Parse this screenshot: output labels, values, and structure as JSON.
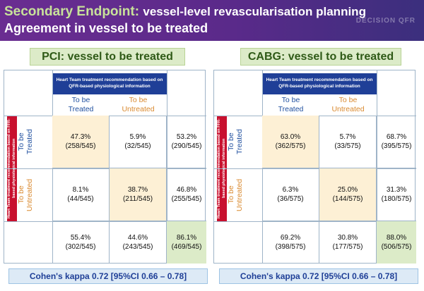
{
  "header": {
    "title_lead": "Secondary Endpoint:",
    "title_rest": "vessel-level revascularisation planning",
    "subtitle": "Agreement in vessel to be treated",
    "watermark": "DECISION QFR"
  },
  "colors": {
    "header_purple": "#5a2a8a",
    "title_green": "#c8e29a",
    "navy": "#1f3f97",
    "treated_blue": "#1f4f9f",
    "untreated_orange": "#d9892f",
    "row_red": "#c8102e",
    "highlight": "#fdf0d5",
    "total_green": "#dcebc8",
    "kappa_blue": "#ddeaf6"
  },
  "panels": [
    {
      "title": "PCI: vessel to be treated",
      "column_header": "Heart Team treatment recommendation based on QFR-based physiological information",
      "row_header": "Heart Team treatment recommendation based on FFR-based physiological information",
      "col_treated": "To be\nTreated",
      "col_untreated": "To be\nUntreated",
      "row_treated": "To be\nTreated",
      "row_untreated": "To be\nUntreated",
      "cells": {
        "tt_pct": "47.3%",
        "tt_n": "(258/545)",
        "tu_pct": "5.9%",
        "tu_n": "(32/545)",
        "t_row_pct": "53.2%",
        "t_row_n": "(290/545)",
        "ut_pct": "8.1%",
        "ut_n": "(44/545)",
        "uu_pct": "38.7%",
        "uu_n": "(211/545)",
        "u_row_pct": "46.8%",
        "u_row_n": "(255/545)",
        "col_t_pct": "55.4%",
        "col_t_n": "(302/545)",
        "col_u_pct": "44.6%",
        "col_u_n": "(243/545)",
        "agree_pct": "86.1%",
        "agree_n": "(469/545)"
      },
      "kappa": "Cohen's kappa 0.72 [95%CI 0.66 – 0.78]"
    },
    {
      "title": "CABG: vessel to be treated",
      "column_header": "Heart Team treatment recommendation based on QFR-based physiological information",
      "row_header": "Heart Team treatment recommendation based on FFR-based physiological information",
      "col_treated": "To be\nTreated",
      "col_untreated": "To be\nUntreated",
      "row_treated": "To be\nTreated",
      "row_untreated": "To be\nUntreated",
      "cells": {
        "tt_pct": "63.0%",
        "tt_n": "(362/575)",
        "tu_pct": "5.7%",
        "tu_n": "(33/575)",
        "t_row_pct": "68.7%",
        "t_row_n": "(395/575)",
        "ut_pct": "6.3%",
        "ut_n": "(36/575)",
        "uu_pct": "25.0%",
        "uu_n": "(144/575)",
        "u_row_pct": "31.3%",
        "u_row_n": "(180/575)",
        "col_t_pct": "69.2%",
        "col_t_n": "(398/575)",
        "col_u_pct": "30.8%",
        "col_u_n": "(177/575)",
        "agree_pct": "88.0%",
        "agree_n": "(506/575)"
      },
      "kappa": "Cohen's kappa 0.72 [95%CI 0.66 – 0.78]"
    }
  ]
}
